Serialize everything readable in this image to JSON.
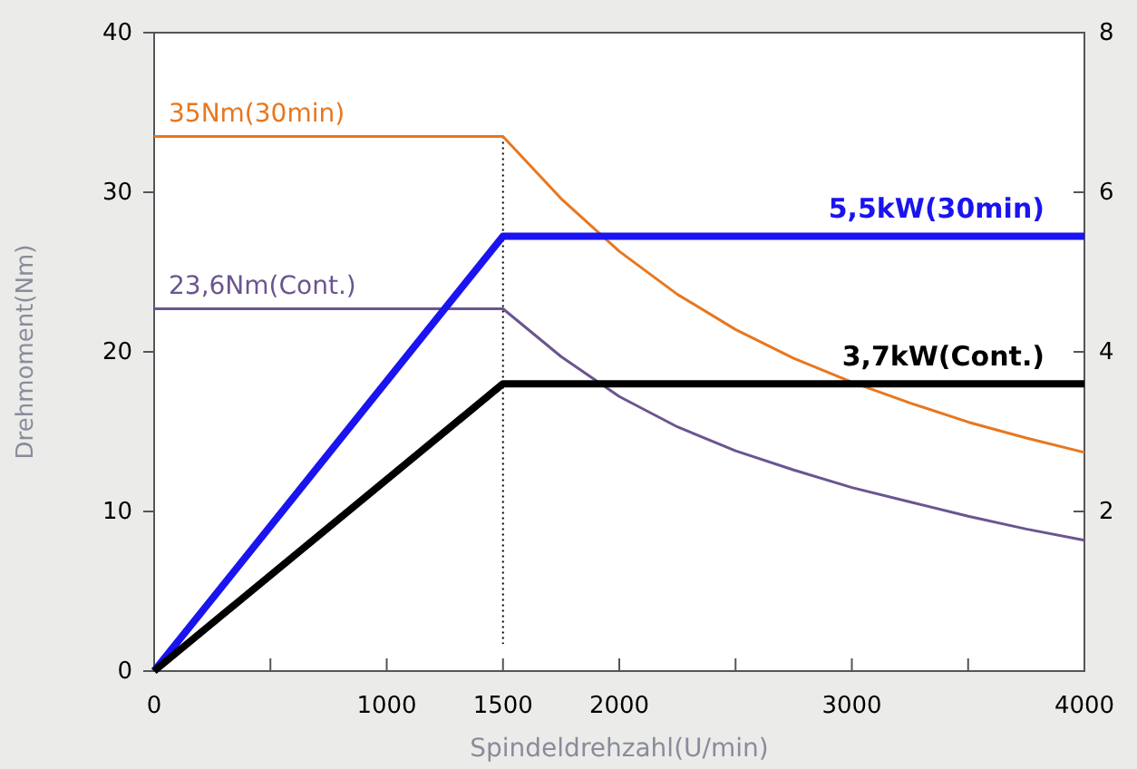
{
  "chart_data": {
    "type": "line",
    "xlabel": "Spindeldrehzahl(U/min)",
    "ylabel": "Drehmoment(Nm)",
    "xlim": [
      0,
      4000
    ],
    "xticks": [
      0,
      {
        "value": 500,
        "label": null
      },
      1000,
      1500,
      2000,
      {
        "value": 2500,
        "label": null
      },
      3000,
      {
        "value": 3500,
        "label": null
      },
      4000
    ],
    "ylim": [
      0,
      40
    ],
    "yticks": [
      0,
      10,
      20,
      30,
      40
    ],
    "y2lim": [
      0,
      8
    ],
    "y2ticks": [
      2,
      4,
      6,
      8
    ],
    "grid": false,
    "legend": false,
    "marker": "none",
    "line_style": "solid",
    "ref_lines": [
      {
        "axis": "x",
        "value": 1500,
        "line_style": "dotted",
        "color": "#000000"
      }
    ],
    "series": [
      {
        "name": "35Nm(30min)",
        "color": "#e8771e",
        "x": [
          0,
          1500,
          1750,
          2000,
          2250,
          2500,
          2750,
          3000,
          3250,
          3500,
          3750,
          4000
        ],
        "values": [
          33.5,
          33.5,
          29.6,
          26.3,
          23.6,
          21.4,
          19.6,
          18.1,
          16.8,
          15.6,
          14.6,
          13.7
        ]
      },
      {
        "name": "23,6Nm(Cont.)",
        "color": "#6a5590",
        "x": [
          0,
          1500,
          1750,
          2000,
          2250,
          2500,
          2750,
          3000,
          3250,
          3500,
          3750,
          4000
        ],
        "values": [
          22.7,
          22.7,
          19.7,
          17.2,
          15.3,
          13.8,
          12.6,
          11.5,
          10.6,
          9.7,
          8.9,
          8.2
        ]
      },
      {
        "name": "5,5kW(30min)",
        "color": "#1a14f0",
        "axis": "y2",
        "x": [
          0,
          1500,
          4000
        ],
        "values": [
          0,
          5.45,
          5.45
        ]
      },
      {
        "name": "3,7kW(Cont.)",
        "color": "#000000",
        "axis": "y2",
        "x": [
          0,
          1500,
          4000
        ],
        "values": [
          0,
          3.6,
          3.6
        ]
      }
    ]
  }
}
